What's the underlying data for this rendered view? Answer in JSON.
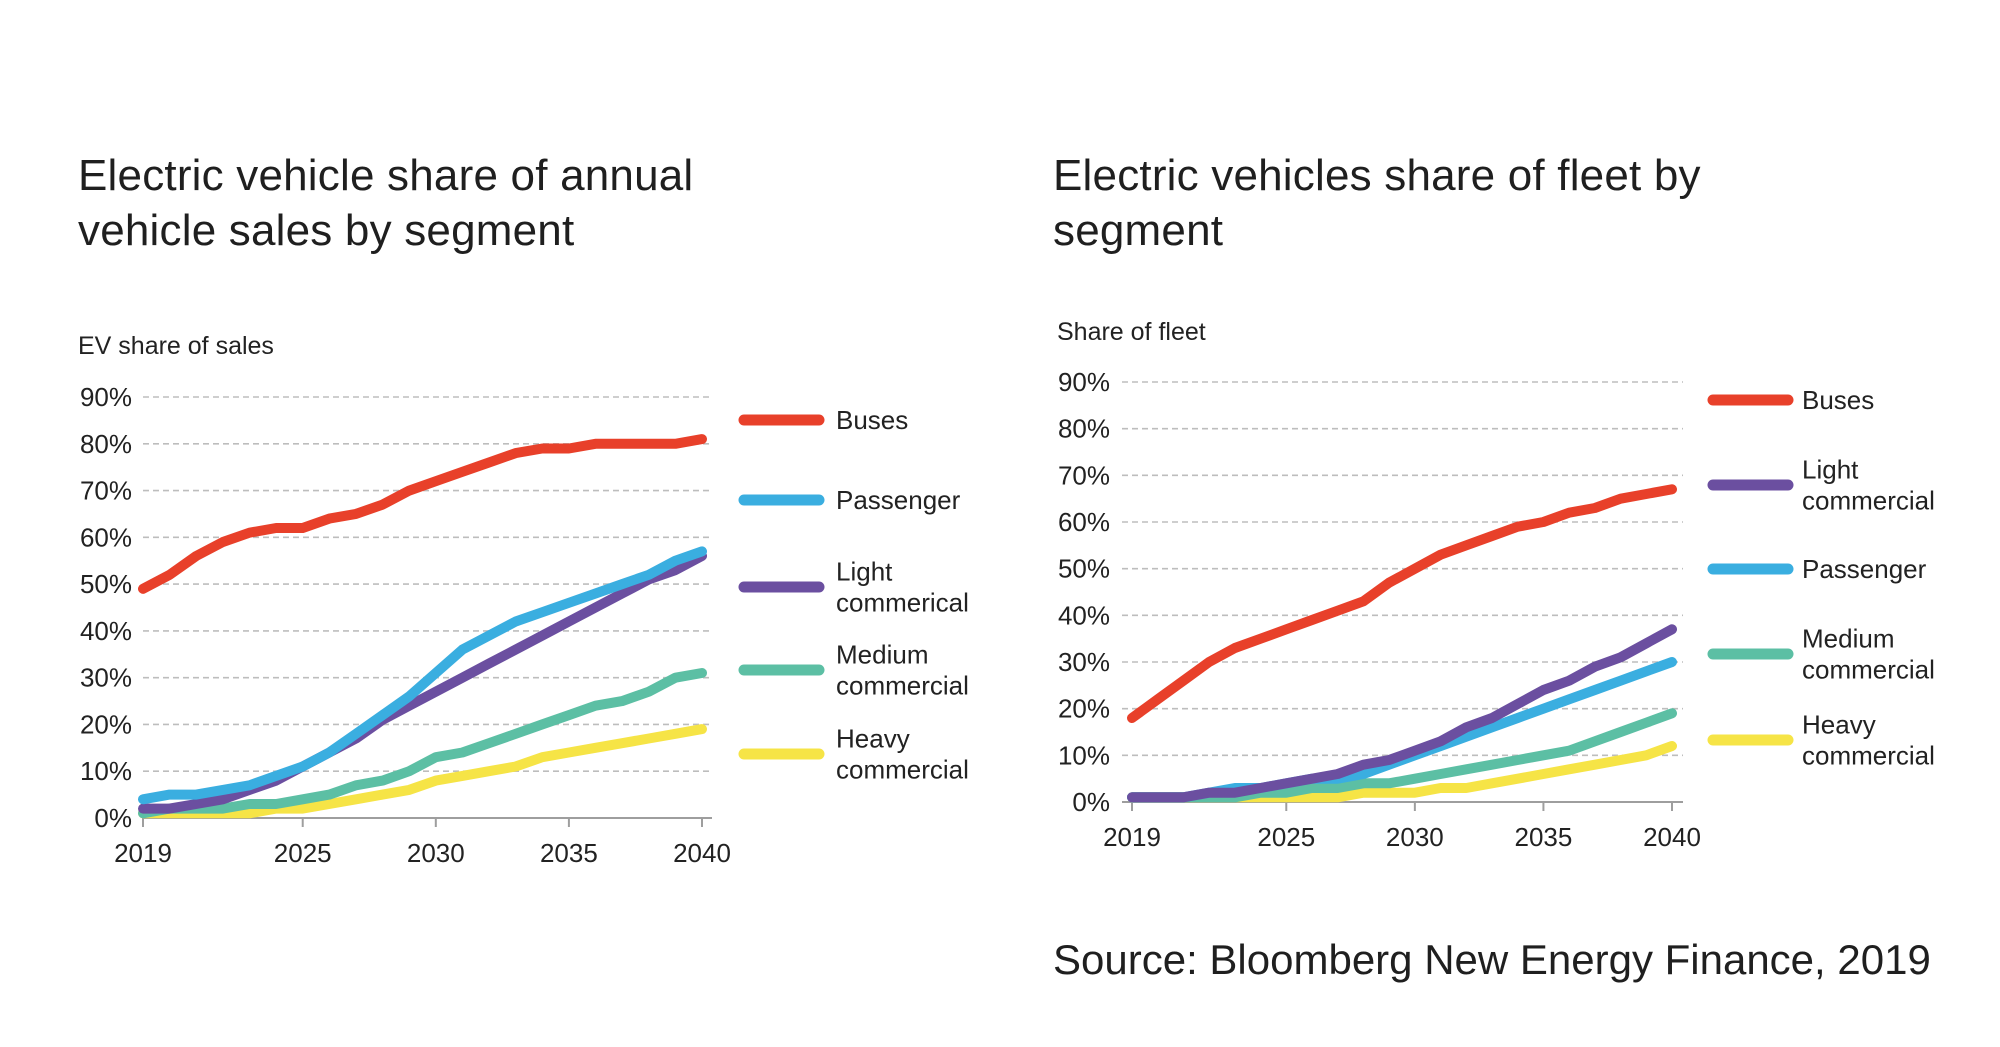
{
  "source": "Source: Bloomberg New Energy Finance, 2019",
  "chart_data": [
    {
      "type": "line",
      "title": "Electric vehicle share of annual vehicle sales by segment",
      "ylabel": "EV share of sales",
      "xlabel": "",
      "x": [
        2019,
        2020,
        2021,
        2022,
        2023,
        2024,
        2025,
        2026,
        2027,
        2028,
        2029,
        2030,
        2031,
        2032,
        2033,
        2034,
        2035,
        2036,
        2037,
        2038,
        2039,
        2040
      ],
      "xticks": [
        "2019",
        "2025",
        "2030",
        "2035",
        "2040"
      ],
      "ylim": [
        0,
        90
      ],
      "yticks": [
        "0%",
        "10%",
        "20%",
        "30%",
        "40%",
        "50%",
        "60%",
        "70%",
        "80%",
        "90%"
      ],
      "grid": true,
      "legend_position": "right",
      "series": [
        {
          "name": "Buses",
          "color": "#e8402a",
          "values": [
            49,
            52,
            56,
            59,
            61,
            62,
            62,
            64,
            65,
            67,
            70,
            72,
            74,
            76,
            78,
            79,
            79,
            80,
            80,
            80,
            80,
            81
          ]
        },
        {
          "name": "Passenger",
          "color": "#3aaee0",
          "values": [
            4,
            5,
            5,
            6,
            7,
            9,
            11,
            14,
            18,
            22,
            26,
            31,
            36,
            39,
            42,
            44,
            46,
            48,
            50,
            52,
            55,
            57
          ]
        },
        {
          "name": "Light commerical",
          "color": "#6b4fa0",
          "values": [
            2,
            2,
            3,
            4,
            6,
            8,
            11,
            14,
            17,
            21,
            24,
            27,
            30,
            33,
            36,
            39,
            42,
            45,
            48,
            51,
            53,
            56
          ]
        },
        {
          "name": "Medium commercial",
          "color": "#5cbfa4",
          "values": [
            1,
            2,
            2,
            2,
            3,
            3,
            4,
            5,
            7,
            8,
            10,
            13,
            14,
            16,
            18,
            20,
            22,
            24,
            25,
            27,
            30,
            31
          ]
        },
        {
          "name": "Heavy commercial",
          "color": "#f6e446",
          "values": [
            1,
            1,
            1,
            1,
            1,
            2,
            2,
            3,
            4,
            5,
            6,
            8,
            9,
            10,
            11,
            13,
            14,
            15,
            16,
            17,
            18,
            19
          ]
        }
      ]
    },
    {
      "type": "line",
      "title": "Electric vehicles share of fleet by segment",
      "ylabel": "Share of fleet",
      "xlabel": "",
      "x": [
        2019,
        2020,
        2021,
        2022,
        2023,
        2024,
        2025,
        2026,
        2027,
        2028,
        2029,
        2030,
        2031,
        2032,
        2033,
        2034,
        2035,
        2036,
        2037,
        2038,
        2039,
        2040
      ],
      "xticks": [
        "2019",
        "2025",
        "2030",
        "2035",
        "2040"
      ],
      "ylim": [
        0,
        90
      ],
      "yticks": [
        "0%",
        "10%",
        "20%",
        "30%",
        "40%",
        "50%",
        "60%",
        "70%",
        "80%",
        "90%"
      ],
      "grid": true,
      "legend_position": "right",
      "series": [
        {
          "name": "Buses",
          "color": "#e8402a",
          "values": [
            18,
            22,
            26,
            30,
            33,
            35,
            37,
            39,
            41,
            43,
            47,
            50,
            53,
            55,
            57,
            59,
            60,
            62,
            63,
            65,
            66,
            67
          ]
        },
        {
          "name": "Light commercial",
          "color": "#6b4fa0",
          "values": [
            1,
            1,
            1,
            2,
            2,
            3,
            4,
            5,
            6,
            8,
            9,
            11,
            13,
            16,
            18,
            21,
            24,
            26,
            29,
            31,
            34,
            37
          ]
        },
        {
          "name": "Passenger",
          "color": "#3aaee0",
          "values": [
            1,
            1,
            1,
            2,
            3,
            3,
            4,
            5,
            5,
            6,
            8,
            10,
            12,
            14,
            16,
            18,
            20,
            22,
            24,
            26,
            28,
            30
          ]
        },
        {
          "name": "Medium commercial",
          "color": "#5cbfa4",
          "values": [
            1,
            1,
            1,
            1,
            1,
            2,
            2,
            3,
            3,
            4,
            4,
            5,
            6,
            7,
            8,
            9,
            10,
            11,
            13,
            15,
            17,
            19
          ]
        },
        {
          "name": "Heavy commercial",
          "color": "#f6e446",
          "values": [
            1,
            1,
            1,
            1,
            1,
            1,
            1,
            1,
            1,
            2,
            2,
            2,
            3,
            3,
            4,
            5,
            6,
            7,
            8,
            9,
            10,
            12
          ]
        }
      ]
    }
  ]
}
